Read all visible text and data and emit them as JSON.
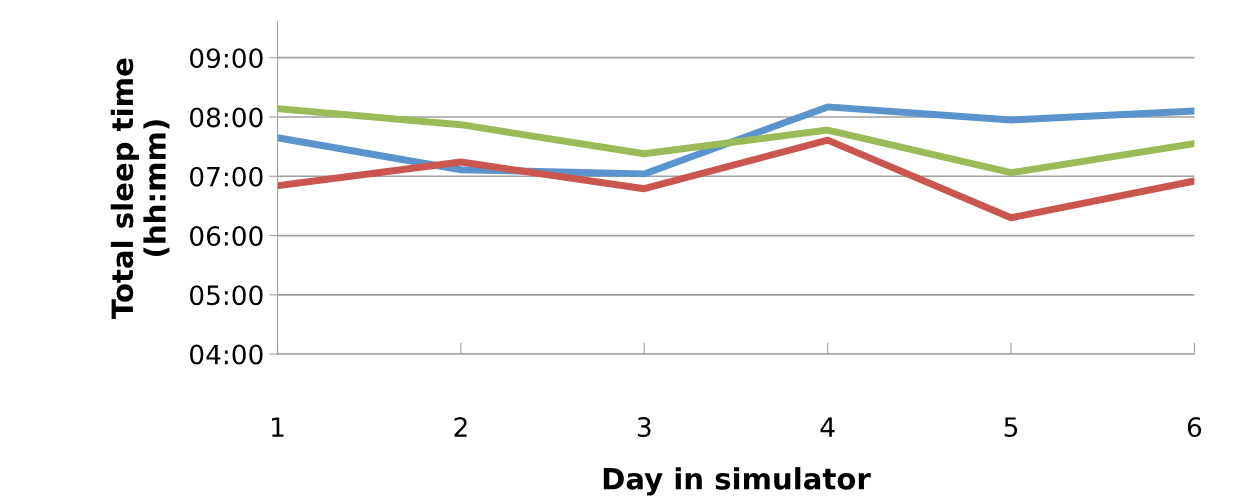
{
  "chart_data": {
    "type": "line",
    "xlabel": "Day in simulator",
    "ylabel": "Total sleep time\n(hh:mm)",
    "categories": [
      "1",
      "2",
      "3",
      "4",
      "5",
      "6"
    ],
    "series": [
      {
        "color": "#5b94cc",
        "values": [
          7.65,
          7.11,
          7.04,
          8.17,
          7.95,
          8.1
        ]
      },
      {
        "color": "#9bbb59",
        "values": [
          8.14,
          7.87,
          7.38,
          7.78,
          7.06,
          7.55
        ]
      },
      {
        "color": "#c9564f",
        "values": [
          6.84,
          7.24,
          6.79,
          7.61,
          6.3,
          6.92
        ]
      }
    ],
    "ylim": [
      4,
      9.6
    ],
    "yticks": [
      {
        "value": 4,
        "label": "04:00"
      },
      {
        "value": 5,
        "label": "05:00"
      },
      {
        "value": 6,
        "label": "06:00"
      },
      {
        "value": 7,
        "label": "07:00"
      },
      {
        "value": 8,
        "label": "08:00"
      },
      {
        "value": 9,
        "label": "09:00"
      }
    ],
    "grid": "y",
    "marker": "none",
    "line_style": "solid"
  }
}
